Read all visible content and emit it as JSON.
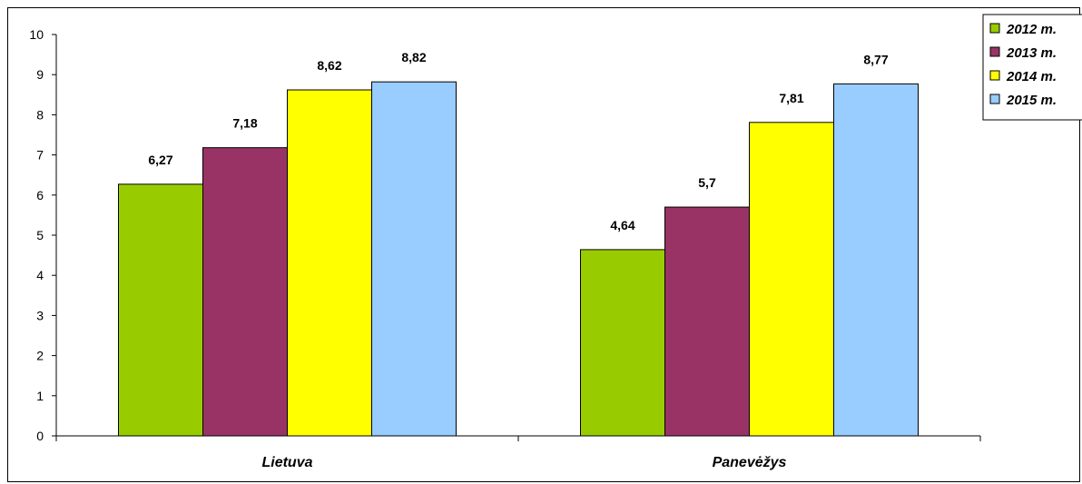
{
  "chart_data": {
    "type": "bar",
    "categories": [
      "Lietuva",
      "Panevėžys"
    ],
    "series": [
      {
        "name": "2012 m.",
        "color": "#99CC00",
        "values": [
          6.27,
          4.64
        ],
        "labels": [
          "6,27",
          "4,64"
        ]
      },
      {
        "name": "2013 m.",
        "color": "#993366",
        "values": [
          7.18,
          5.7
        ],
        "labels": [
          "7,18",
          "5,7"
        ]
      },
      {
        "name": "2014 m.",
        "color": "#FFFF00",
        "values": [
          8.62,
          7.81
        ],
        "labels": [
          "8,62",
          "7,81"
        ]
      },
      {
        "name": "2015 m.",
        "color": "#99CCFF",
        "values": [
          8.82,
          8.77
        ],
        "labels": [
          "8,82",
          "8,77"
        ]
      }
    ],
    "ylim": [
      0,
      10
    ],
    "yticks": [
      "0",
      "1",
      "2",
      "3",
      "4",
      "5",
      "6",
      "7",
      "8",
      "9",
      "10"
    ],
    "grid": false,
    "legend_position": "top-right"
  }
}
